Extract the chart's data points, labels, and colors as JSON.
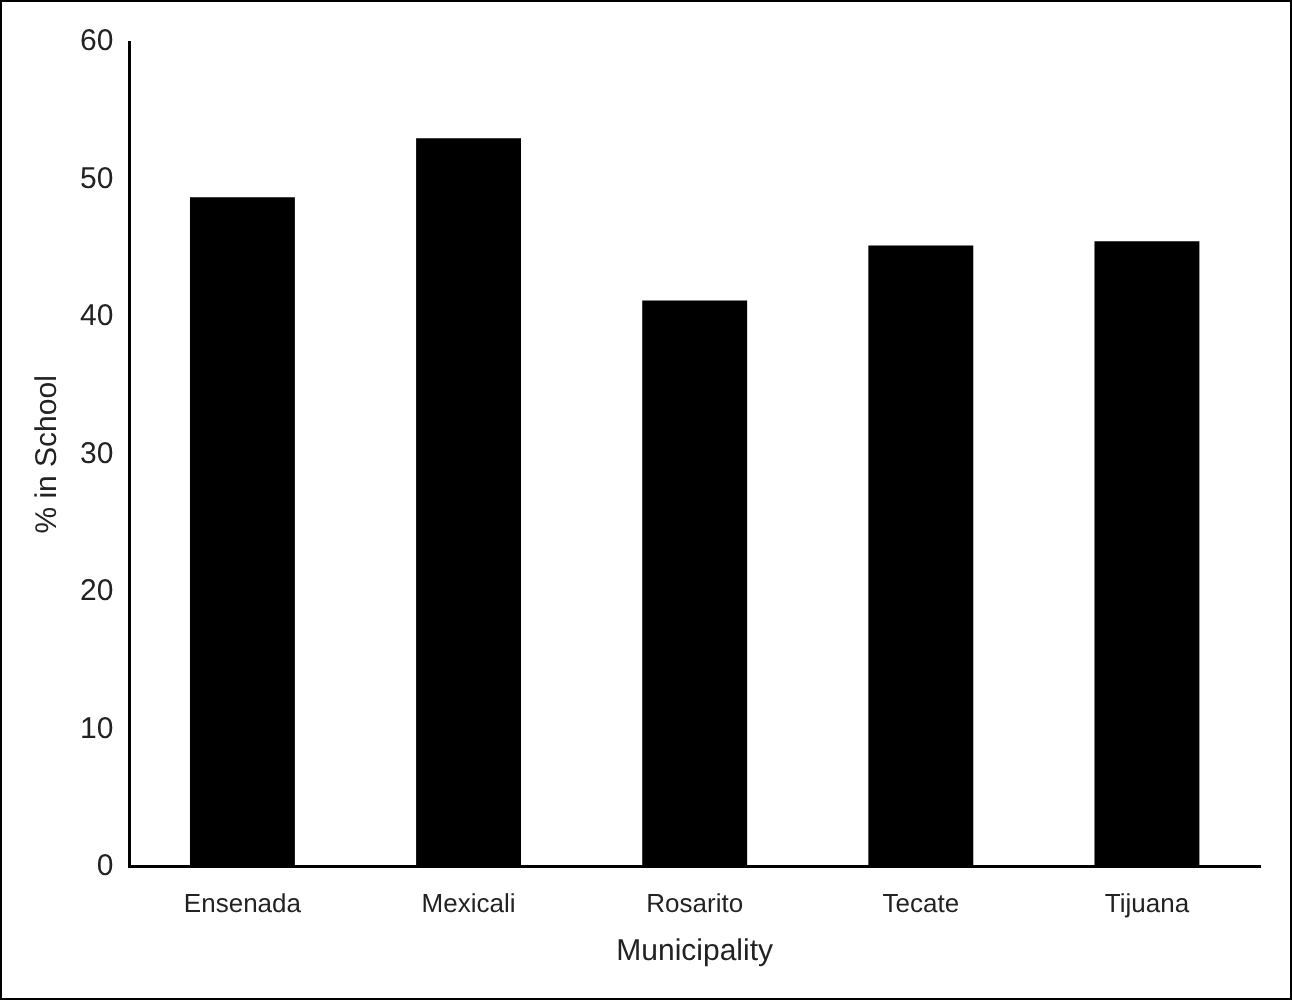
{
  "chart_data": {
    "type": "bar",
    "xlabel": "Municipality",
    "ylabel": "% in School",
    "categories": [
      "Ensenada",
      "Mexicali",
      "Rosarito",
      "Tecate",
      "Tijuana"
    ],
    "values": [
      48.7,
      53,
      41.2,
      45.2,
      45.5
    ],
    "color": "#000000",
    "ylim": [
      0,
      60
    ],
    "yticks": [
      0,
      10,
      20,
      30,
      40,
      50,
      60
    ],
    "grid": false,
    "legend": false
  }
}
